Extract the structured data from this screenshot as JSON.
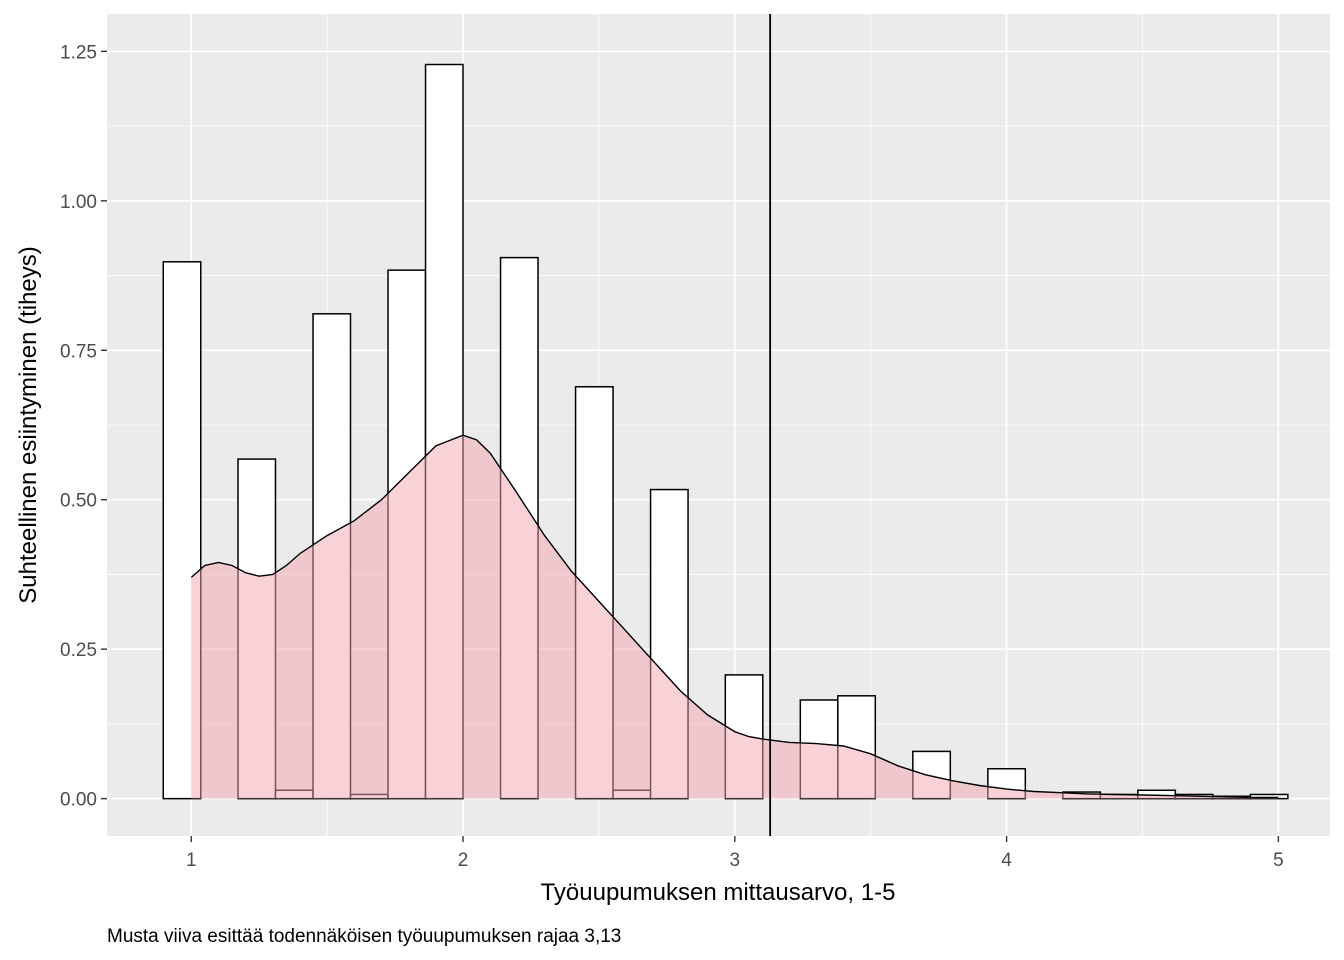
{
  "chart_data": {
    "type": "bar",
    "subtype": "histogram with density curve",
    "xlabel": "Työuupumuksen mittausarvo, 1-5",
    "ylabel": "Suhteellinen esiintyminen (tiheys)",
    "caption": "Musta viiva esittää todennäköisen työuupumuksen rajaa 3,13",
    "xlim": [
      0.69,
      5.19
    ],
    "ylim": [
      -0.0625,
      1.3125
    ],
    "x_ticks": [
      1,
      2,
      3,
      4,
      5
    ],
    "x_tick_labels": [
      "1",
      "2",
      "3",
      "4",
      "5"
    ],
    "y_ticks": [
      0,
      0.25,
      0.5,
      0.75,
      1,
      1.25
    ],
    "y_tick_labels": [
      "0.00",
      "0.25",
      "0.50",
      "0.75",
      "1.00",
      "1.25"
    ],
    "grid": true,
    "threshold_line": {
      "x": 3.13
    },
    "bin_width": 0.1379,
    "bins": [
      {
        "x": 0.966,
        "y": 0.898
      },
      {
        "x": 1.103,
        "y": 0.0
      },
      {
        "x": 1.241,
        "y": 0.568
      },
      {
        "x": 1.379,
        "y": 0.014
      },
      {
        "x": 1.517,
        "y": 0.811
      },
      {
        "x": 1.655,
        "y": 0.007
      },
      {
        "x": 1.793,
        "y": 0.884
      },
      {
        "x": 1.931,
        "y": 1.228
      },
      {
        "x": 2.069,
        "y": 0.0
      },
      {
        "x": 2.207,
        "y": 0.905
      },
      {
        "x": 2.345,
        "y": 0.0
      },
      {
        "x": 2.483,
        "y": 0.689
      },
      {
        "x": 2.621,
        "y": 0.014
      },
      {
        "x": 2.759,
        "y": 0.517
      },
      {
        "x": 2.897,
        "y": 0.0
      },
      {
        "x": 3.034,
        "y": 0.207
      },
      {
        "x": 3.172,
        "y": 0.0
      },
      {
        "x": 3.31,
        "y": 0.165
      },
      {
        "x": 3.448,
        "y": 0.172
      },
      {
        "x": 3.586,
        "y": 0.0
      },
      {
        "x": 3.724,
        "y": 0.079
      },
      {
        "x": 3.862,
        "y": 0.0
      },
      {
        "x": 4.0,
        "y": 0.05
      },
      {
        "x": 4.138,
        "y": 0.0
      },
      {
        "x": 4.276,
        "y": 0.011
      },
      {
        "x": 4.414,
        "y": 0.007
      },
      {
        "x": 4.552,
        "y": 0.014
      },
      {
        "x": 4.69,
        "y": 0.007
      },
      {
        "x": 4.828,
        "y": 0.004
      },
      {
        "x": 4.966,
        "y": 0.007
      }
    ],
    "density": {
      "x": [
        1.0,
        1.05,
        1.1,
        1.15,
        1.2,
        1.25,
        1.3,
        1.35,
        1.4,
        1.5,
        1.6,
        1.7,
        1.8,
        1.9,
        2.0,
        2.05,
        2.1,
        2.2,
        2.3,
        2.4,
        2.5,
        2.6,
        2.7,
        2.8,
        2.9,
        3.0,
        3.05,
        3.1,
        3.2,
        3.3,
        3.4,
        3.5,
        3.6,
        3.7,
        3.8,
        3.9,
        4.0,
        4.1,
        4.2,
        4.3,
        4.4,
        4.5,
        4.6,
        4.7,
        4.8,
        4.9,
        5.0
      ],
      "y": [
        0.37,
        0.39,
        0.395,
        0.39,
        0.378,
        0.372,
        0.375,
        0.39,
        0.41,
        0.44,
        0.465,
        0.5,
        0.545,
        0.59,
        0.608,
        0.6,
        0.578,
        0.51,
        0.44,
        0.38,
        0.33,
        0.28,
        0.23,
        0.18,
        0.14,
        0.112,
        0.104,
        0.1,
        0.094,
        0.092,
        0.088,
        0.075,
        0.055,
        0.04,
        0.03,
        0.022,
        0.016,
        0.012,
        0.01,
        0.008,
        0.007,
        0.006,
        0.005,
        0.004,
        0.003,
        0.002,
        0.002
      ]
    },
    "colors": {
      "panel_background": "#EBEBEB",
      "grid_major": "#FFFFFF",
      "bar_fill": "#FFFFFF",
      "bar_outline": "#000000",
      "density_fill": "#F4A6B0",
      "density_fill_opacity": 0.5,
      "density_line": "#000000",
      "threshold_line": "#000000"
    }
  }
}
